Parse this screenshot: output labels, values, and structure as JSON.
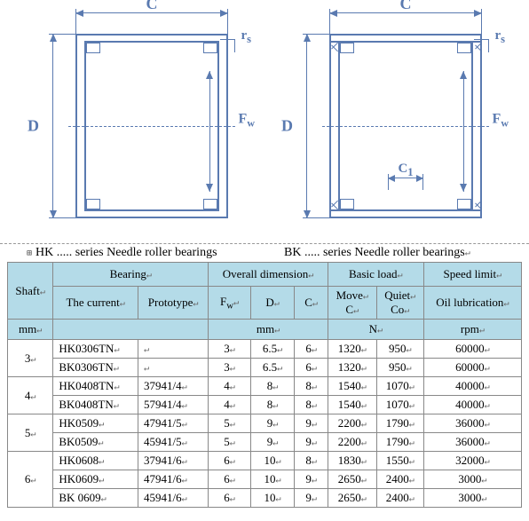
{
  "diagram": {
    "dim_C": "C",
    "dim_D": "D",
    "dim_Fw": "F",
    "dim_Fw_sub": "w",
    "dim_rs": "r",
    "dim_rs_sub": "s",
    "dim_C1": "C",
    "dim_C1_sub": "1",
    "stroke": "#5a7ab0"
  },
  "series": {
    "left": "HK ..... series Needle roller bearings",
    "right": "BK ..... series Needle roller bearings",
    "marker": "↵"
  },
  "table": {
    "head": {
      "shaft": "Shaft",
      "bearing": "Bearing",
      "overall": "Overall dimension",
      "basic": "Basic load",
      "speed": "Speed limit",
      "current": "The current",
      "prototype": "Prototype",
      "Fw": "F",
      "Fw_sub": "w",
      "D": "D",
      "C": "C",
      "move": "Move",
      "move2": "C",
      "quiet": "Quiet",
      "quiet2": "Co",
      "oil": "Oil lubrication",
      "mm": "mm",
      "N": "N",
      "rpm": "rpm"
    },
    "rows": [
      {
        "shaft": "3",
        "cur": "HK0306TN",
        "proto": "",
        "fw": "3",
        "d": "6.5",
        "c": "6",
        "mv": "1320",
        "qt": "950",
        "rpm": "60000"
      },
      {
        "shaft": "",
        "cur": "BK0306TN",
        "proto": "",
        "fw": "3",
        "d": "6.5",
        "c": "6",
        "mv": "1320",
        "qt": "950",
        "rpm": "60000"
      },
      {
        "shaft": "4",
        "cur": "HK0408TN",
        "proto": "37941/4",
        "fw": "4",
        "d": "8",
        "c": "8",
        "mv": "1540",
        "qt": "1070",
        "rpm": "40000"
      },
      {
        "shaft": "",
        "cur": "BK0408TN",
        "proto": "57941/4",
        "fw": "4",
        "d": "8",
        "c": "8",
        "mv": "1540",
        "qt": "1070",
        "rpm": "40000"
      },
      {
        "shaft": "5",
        "cur": "HK0509",
        "proto": "47941/5",
        "fw": "5",
        "d": "9",
        "c": "9",
        "mv": "2200",
        "qt": "1790",
        "rpm": "36000"
      },
      {
        "shaft": "",
        "cur": "BK0509",
        "proto": "45941/5",
        "fw": "5",
        "d": "9",
        "c": "9",
        "mv": "2200",
        "qt": "1790",
        "rpm": "36000"
      },
      {
        "shaft": "6",
        "cur": "HK0608",
        "proto": "37941/6",
        "fw": "6",
        "d": "10",
        "c": "8",
        "mv": "1830",
        "qt": "1550",
        "rpm": "32000"
      },
      {
        "shaft": "",
        "cur": "HK0609",
        "proto": "47941/6",
        "fw": "6",
        "d": "10",
        "c": "9",
        "mv": "2650",
        "qt": "2400",
        "rpm": "3000"
      },
      {
        "shaft": "",
        "cur": "BK 0609",
        "proto": "45941/6",
        "fw": "6",
        "d": "10",
        "c": "9",
        "mv": "2650",
        "qt": "2400",
        "rpm": "3000"
      }
    ],
    "shaft_spans": [
      2,
      2,
      2,
      3
    ]
  },
  "sym": "↵"
}
